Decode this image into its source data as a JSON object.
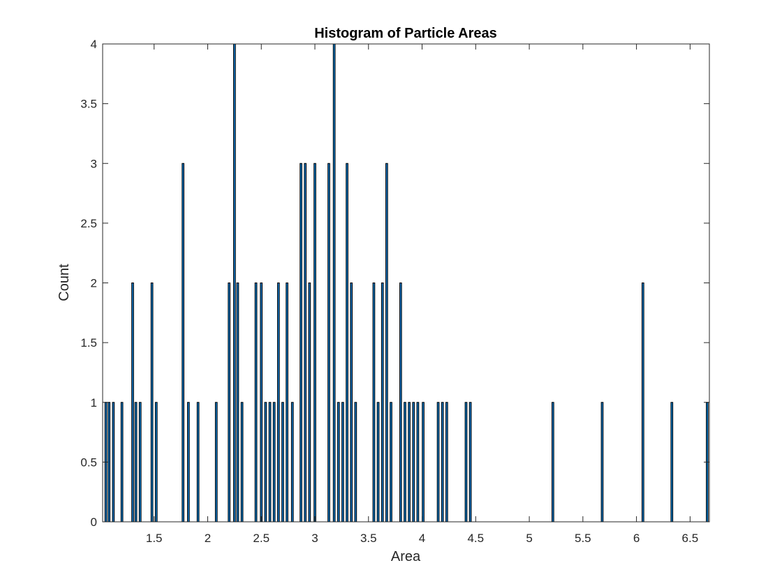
{
  "chart_data": {
    "type": "bar",
    "title": "Histogram of Particle Areas",
    "xlabel": "Area",
    "ylabel": "Count",
    "xlim": [
      1.02,
      6.68
    ],
    "ylim": [
      0,
      4
    ],
    "grid": false,
    "bar_color": "#0072BD",
    "edge_color": "#000000",
    "bin_width": 0.0283,
    "x_ticks": [
      1.5,
      2,
      2.5,
      3,
      3.5,
      4,
      4.5,
      5,
      5.5,
      6,
      6.5
    ],
    "x_tick_labels": [
      "1.5",
      "2",
      "2.5",
      "3",
      "3.5",
      "4",
      "4.5",
      "5",
      "5.5",
      "6",
      "6.5"
    ],
    "y_ticks": [
      0,
      0.5,
      1,
      1.5,
      2,
      2.5,
      3,
      3.5,
      4
    ],
    "y_tick_labels": [
      "0",
      "0.5",
      "1",
      "1.5",
      "2",
      "2.5",
      "3",
      "3.5",
      "4"
    ],
    "bins": [
      {
        "x": 1.05,
        "count": 1
      },
      {
        "x": 1.08,
        "count": 1
      },
      {
        "x": 1.12,
        "count": 1
      },
      {
        "x": 1.2,
        "count": 1
      },
      {
        "x": 1.3,
        "count": 2
      },
      {
        "x": 1.33,
        "count": 1
      },
      {
        "x": 1.37,
        "count": 1
      },
      {
        "x": 1.48,
        "count": 2
      },
      {
        "x": 1.52,
        "count": 1
      },
      {
        "x": 1.77,
        "count": 3
      },
      {
        "x": 1.82,
        "count": 1
      },
      {
        "x": 1.91,
        "count": 1
      },
      {
        "x": 2.08,
        "count": 1
      },
      {
        "x": 2.2,
        "count": 2
      },
      {
        "x": 2.25,
        "count": 4
      },
      {
        "x": 2.28,
        "count": 2
      },
      {
        "x": 2.32,
        "count": 1
      },
      {
        "x": 2.45,
        "count": 2
      },
      {
        "x": 2.5,
        "count": 2
      },
      {
        "x": 2.54,
        "count": 1
      },
      {
        "x": 2.58,
        "count": 1
      },
      {
        "x": 2.62,
        "count": 1
      },
      {
        "x": 2.66,
        "count": 2
      },
      {
        "x": 2.7,
        "count": 1
      },
      {
        "x": 2.74,
        "count": 2
      },
      {
        "x": 2.79,
        "count": 1
      },
      {
        "x": 2.87,
        "count": 3
      },
      {
        "x": 2.91,
        "count": 3
      },
      {
        "x": 2.95,
        "count": 2
      },
      {
        "x": 3.0,
        "count": 3
      },
      {
        "x": 3.13,
        "count": 3
      },
      {
        "x": 3.18,
        "count": 4
      },
      {
        "x": 3.22,
        "count": 1
      },
      {
        "x": 3.26,
        "count": 1
      },
      {
        "x": 3.3,
        "count": 3
      },
      {
        "x": 3.34,
        "count": 2
      },
      {
        "x": 3.38,
        "count": 1
      },
      {
        "x": 3.55,
        "count": 2
      },
      {
        "x": 3.59,
        "count": 1
      },
      {
        "x": 3.63,
        "count": 2
      },
      {
        "x": 3.67,
        "count": 3
      },
      {
        "x": 3.71,
        "count": 1
      },
      {
        "x": 3.8,
        "count": 2
      },
      {
        "x": 3.84,
        "count": 1
      },
      {
        "x": 3.88,
        "count": 1
      },
      {
        "x": 3.92,
        "count": 1
      },
      {
        "x": 3.96,
        "count": 1
      },
      {
        "x": 4.01,
        "count": 1
      },
      {
        "x": 4.15,
        "count": 1
      },
      {
        "x": 4.19,
        "count": 1
      },
      {
        "x": 4.23,
        "count": 1
      },
      {
        "x": 4.41,
        "count": 1
      },
      {
        "x": 4.45,
        "count": 1
      },
      {
        "x": 5.22,
        "count": 1
      },
      {
        "x": 5.68,
        "count": 1
      },
      {
        "x": 6.06,
        "count": 2
      },
      {
        "x": 6.33,
        "count": 1
      },
      {
        "x": 6.66,
        "count": 1
      }
    ]
  }
}
